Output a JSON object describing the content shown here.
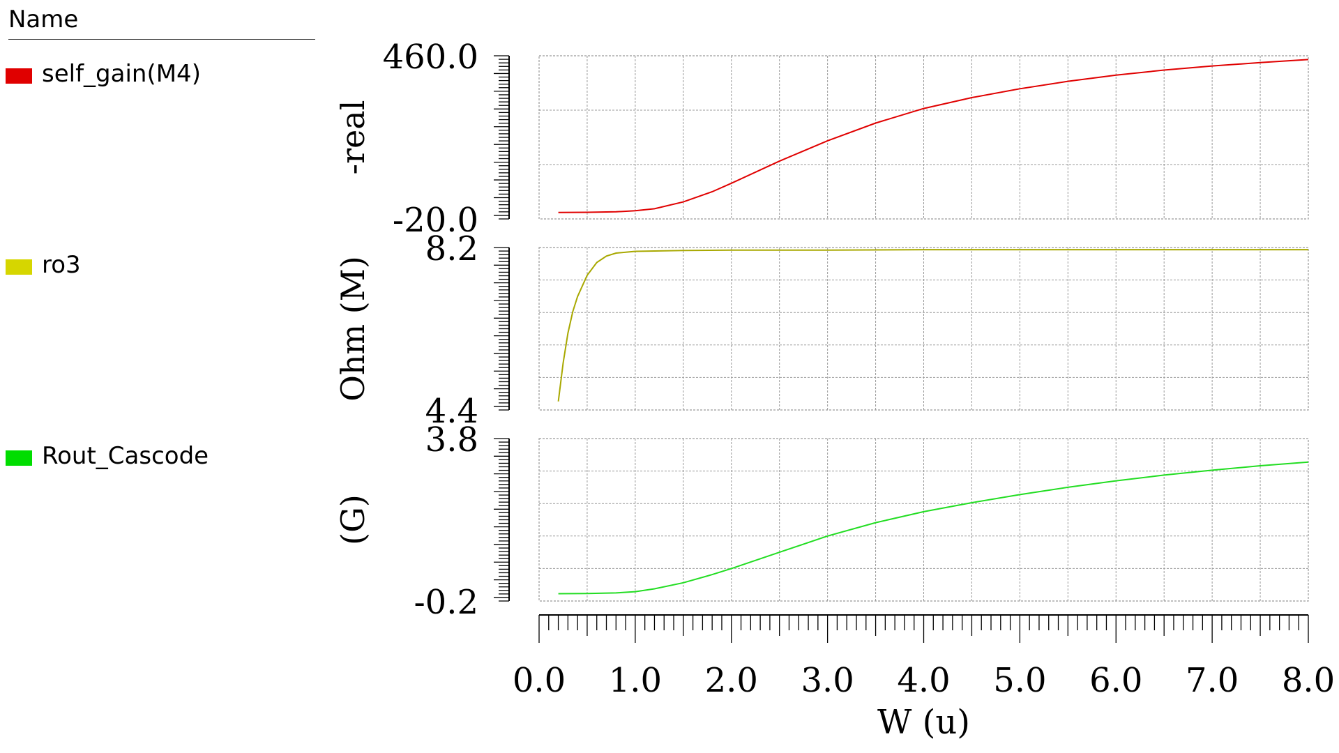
{
  "legend": {
    "header": "Name",
    "items": [
      {
        "label": "self_gain(M4)",
        "color": "#e00000"
      },
      {
        "label": "ro3",
        "color": "#d6d600"
      },
      {
        "label": "Rout_Cascode",
        "color": "#00dd00"
      }
    ]
  },
  "chart_data": {
    "type": "line",
    "xlabel": "W (u)",
    "xlim": [
      0.0,
      8.0
    ],
    "x_ticks": [
      "0.0",
      "1.0",
      "2.0",
      "3.0",
      "4.0",
      "5.0",
      "6.0",
      "7.0",
      "8.0"
    ],
    "grid": true,
    "panels": [
      {
        "name": "self_gain(M4)",
        "ylabel": "-real",
        "ylim": [
          -20.0,
          460.0
        ],
        "ymax_label": "460.0",
        "ymin_label": "-20.0",
        "color": "#e00000",
        "series": {
          "x": [
            0.2,
            0.5,
            0.8,
            1.0,
            1.2,
            1.5,
            1.8,
            2.0,
            2.5,
            3.0,
            3.5,
            4.0,
            4.5,
            5.0,
            5.5,
            6.0,
            6.5,
            7.0,
            7.5,
            8.0
          ],
          "y": [
            -1,
            -0.5,
            1,
            4,
            10,
            30,
            60,
            85,
            150,
            210,
            262,
            305,
            337,
            363,
            385,
            403,
            418,
            430,
            440,
            449
          ]
        }
      },
      {
        "name": "ro3",
        "ylabel": "Ohm (M)",
        "ylim": [
          4.4,
          8.2
        ],
        "ymax_label": "8.2",
        "ymin_label": "4.4",
        "color": "#a8a800",
        "series": {
          "x": [
            0.2,
            0.25,
            0.3,
            0.35,
            0.4,
            0.5,
            0.6,
            0.7,
            0.8,
            1.0,
            1.5,
            2.0,
            3.0,
            4.0,
            5.0,
            6.0,
            7.0,
            8.0
          ],
          "y": [
            4.6,
            5.5,
            6.2,
            6.7,
            7.05,
            7.55,
            7.85,
            8.0,
            8.07,
            8.11,
            8.13,
            8.14,
            8.14,
            8.15,
            8.15,
            8.15,
            8.15,
            8.15
          ]
        }
      },
      {
        "name": "Rout_Cascode",
        "ylabel": "(G)",
        "ylim": [
          -0.2,
          3.8
        ],
        "ymax_label": "3.8",
        "ymin_label": "-0.2",
        "color": "#22dd22",
        "series": {
          "x": [
            0.2,
            0.5,
            0.8,
            1.0,
            1.2,
            1.5,
            1.8,
            2.0,
            2.5,
            3.0,
            3.5,
            4.0,
            4.5,
            5.0,
            5.5,
            6.0,
            6.5,
            7.0,
            7.5,
            8.0
          ],
          "y": [
            -0.02,
            -0.015,
            0.0,
            0.03,
            0.1,
            0.25,
            0.45,
            0.6,
            1.0,
            1.4,
            1.73,
            2.0,
            2.22,
            2.42,
            2.6,
            2.76,
            2.9,
            3.02,
            3.13,
            3.22
          ]
        }
      }
    ]
  }
}
